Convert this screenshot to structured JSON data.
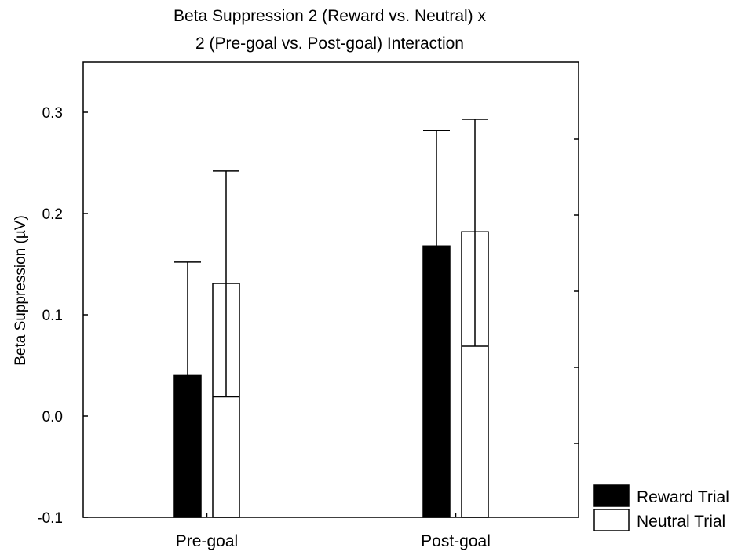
{
  "chart_data": {
    "type": "bar",
    "title_lines": [
      "Beta Suppression 2 (Reward vs. Neutral) x",
      "2 (Pre-goal vs. Post-goal) Interaction"
    ],
    "xlabel": "",
    "ylabel": "Beta Suppression (µV)",
    "ylim": [
      -0.1,
      0.35
    ],
    "yticks": [
      -0.1,
      0.0,
      0.1,
      0.2,
      0.3
    ],
    "ytick_labels": [
      "-0.1",
      "0.0",
      "0.1",
      "0.2",
      "0.3"
    ],
    "categories": [
      "Pre-goal",
      "Post-goal"
    ],
    "series": [
      {
        "name": "Reward Trial",
        "color": "#000000",
        "values": [
          0.04,
          0.168
        ],
        "error_low": [
          -0.072,
          0.055
        ],
        "error_high": [
          0.152,
          0.282
        ]
      },
      {
        "name": "Neutral Trial",
        "color": "#ffffff",
        "values": [
          0.131,
          0.182
        ],
        "error_low": [
          0.019,
          0.069
        ],
        "error_high": [
          0.242,
          0.293
        ]
      }
    ],
    "grid": false,
    "legend_position": "bottom-right-outside"
  }
}
